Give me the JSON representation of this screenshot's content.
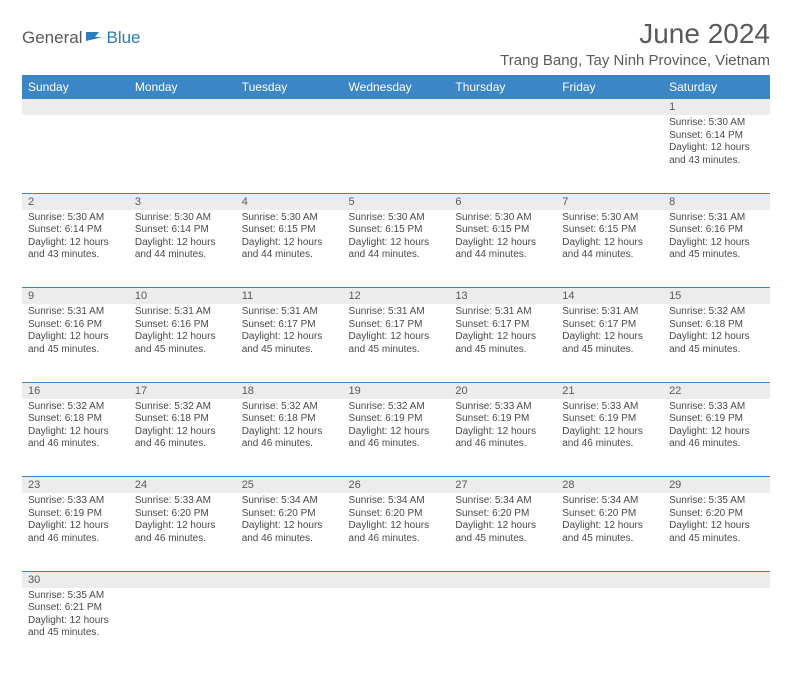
{
  "logo": {
    "part1": "General",
    "part2": "Blue"
  },
  "title": "June 2024",
  "location": "Trang Bang, Tay Ninh Province, Vietnam",
  "colors": {
    "header_bg": "#3b86c6",
    "daynum_bg": "#ececec",
    "rule": "#3b86c6",
    "text": "#5a5a5a",
    "logo_blue": "#2b7bbd"
  },
  "weekdays": [
    "Sunday",
    "Monday",
    "Tuesday",
    "Wednesday",
    "Thursday",
    "Friday",
    "Saturday"
  ],
  "weeks": [
    [
      null,
      null,
      null,
      null,
      null,
      null,
      {
        "d": "1",
        "sr": "Sunrise: 5:30 AM",
        "ss": "Sunset: 6:14 PM",
        "dl": "Daylight: 12 hours and 43 minutes."
      }
    ],
    [
      {
        "d": "2",
        "sr": "Sunrise: 5:30 AM",
        "ss": "Sunset: 6:14 PM",
        "dl": "Daylight: 12 hours and 43 minutes."
      },
      {
        "d": "3",
        "sr": "Sunrise: 5:30 AM",
        "ss": "Sunset: 6:14 PM",
        "dl": "Daylight: 12 hours and 44 minutes."
      },
      {
        "d": "4",
        "sr": "Sunrise: 5:30 AM",
        "ss": "Sunset: 6:15 PM",
        "dl": "Daylight: 12 hours and 44 minutes."
      },
      {
        "d": "5",
        "sr": "Sunrise: 5:30 AM",
        "ss": "Sunset: 6:15 PM",
        "dl": "Daylight: 12 hours and 44 minutes."
      },
      {
        "d": "6",
        "sr": "Sunrise: 5:30 AM",
        "ss": "Sunset: 6:15 PM",
        "dl": "Daylight: 12 hours and 44 minutes."
      },
      {
        "d": "7",
        "sr": "Sunrise: 5:30 AM",
        "ss": "Sunset: 6:15 PM",
        "dl": "Daylight: 12 hours and 44 minutes."
      },
      {
        "d": "8",
        "sr": "Sunrise: 5:31 AM",
        "ss": "Sunset: 6:16 PM",
        "dl": "Daylight: 12 hours and 45 minutes."
      }
    ],
    [
      {
        "d": "9",
        "sr": "Sunrise: 5:31 AM",
        "ss": "Sunset: 6:16 PM",
        "dl": "Daylight: 12 hours and 45 minutes."
      },
      {
        "d": "10",
        "sr": "Sunrise: 5:31 AM",
        "ss": "Sunset: 6:16 PM",
        "dl": "Daylight: 12 hours and 45 minutes."
      },
      {
        "d": "11",
        "sr": "Sunrise: 5:31 AM",
        "ss": "Sunset: 6:17 PM",
        "dl": "Daylight: 12 hours and 45 minutes."
      },
      {
        "d": "12",
        "sr": "Sunrise: 5:31 AM",
        "ss": "Sunset: 6:17 PM",
        "dl": "Daylight: 12 hours and 45 minutes."
      },
      {
        "d": "13",
        "sr": "Sunrise: 5:31 AM",
        "ss": "Sunset: 6:17 PM",
        "dl": "Daylight: 12 hours and 45 minutes."
      },
      {
        "d": "14",
        "sr": "Sunrise: 5:31 AM",
        "ss": "Sunset: 6:17 PM",
        "dl": "Daylight: 12 hours and 45 minutes."
      },
      {
        "d": "15",
        "sr": "Sunrise: 5:32 AM",
        "ss": "Sunset: 6:18 PM",
        "dl": "Daylight: 12 hours and 45 minutes."
      }
    ],
    [
      {
        "d": "16",
        "sr": "Sunrise: 5:32 AM",
        "ss": "Sunset: 6:18 PM",
        "dl": "Daylight: 12 hours and 46 minutes."
      },
      {
        "d": "17",
        "sr": "Sunrise: 5:32 AM",
        "ss": "Sunset: 6:18 PM",
        "dl": "Daylight: 12 hours and 46 minutes."
      },
      {
        "d": "18",
        "sr": "Sunrise: 5:32 AM",
        "ss": "Sunset: 6:18 PM",
        "dl": "Daylight: 12 hours and 46 minutes."
      },
      {
        "d": "19",
        "sr": "Sunrise: 5:32 AM",
        "ss": "Sunset: 6:19 PM",
        "dl": "Daylight: 12 hours and 46 minutes."
      },
      {
        "d": "20",
        "sr": "Sunrise: 5:33 AM",
        "ss": "Sunset: 6:19 PM",
        "dl": "Daylight: 12 hours and 46 minutes."
      },
      {
        "d": "21",
        "sr": "Sunrise: 5:33 AM",
        "ss": "Sunset: 6:19 PM",
        "dl": "Daylight: 12 hours and 46 minutes."
      },
      {
        "d": "22",
        "sr": "Sunrise: 5:33 AM",
        "ss": "Sunset: 6:19 PM",
        "dl": "Daylight: 12 hours and 46 minutes."
      }
    ],
    [
      {
        "d": "23",
        "sr": "Sunrise: 5:33 AM",
        "ss": "Sunset: 6:19 PM",
        "dl": "Daylight: 12 hours and 46 minutes."
      },
      {
        "d": "24",
        "sr": "Sunrise: 5:33 AM",
        "ss": "Sunset: 6:20 PM",
        "dl": "Daylight: 12 hours and 46 minutes."
      },
      {
        "d": "25",
        "sr": "Sunrise: 5:34 AM",
        "ss": "Sunset: 6:20 PM",
        "dl": "Daylight: 12 hours and 46 minutes."
      },
      {
        "d": "26",
        "sr": "Sunrise: 5:34 AM",
        "ss": "Sunset: 6:20 PM",
        "dl": "Daylight: 12 hours and 46 minutes."
      },
      {
        "d": "27",
        "sr": "Sunrise: 5:34 AM",
        "ss": "Sunset: 6:20 PM",
        "dl": "Daylight: 12 hours and 45 minutes."
      },
      {
        "d": "28",
        "sr": "Sunrise: 5:34 AM",
        "ss": "Sunset: 6:20 PM",
        "dl": "Daylight: 12 hours and 45 minutes."
      },
      {
        "d": "29",
        "sr": "Sunrise: 5:35 AM",
        "ss": "Sunset: 6:20 PM",
        "dl": "Daylight: 12 hours and 45 minutes."
      }
    ],
    [
      {
        "d": "30",
        "sr": "Sunrise: 5:35 AM",
        "ss": "Sunset: 6:21 PM",
        "dl": "Daylight: 12 hours and 45 minutes."
      },
      null,
      null,
      null,
      null,
      null,
      null
    ]
  ]
}
